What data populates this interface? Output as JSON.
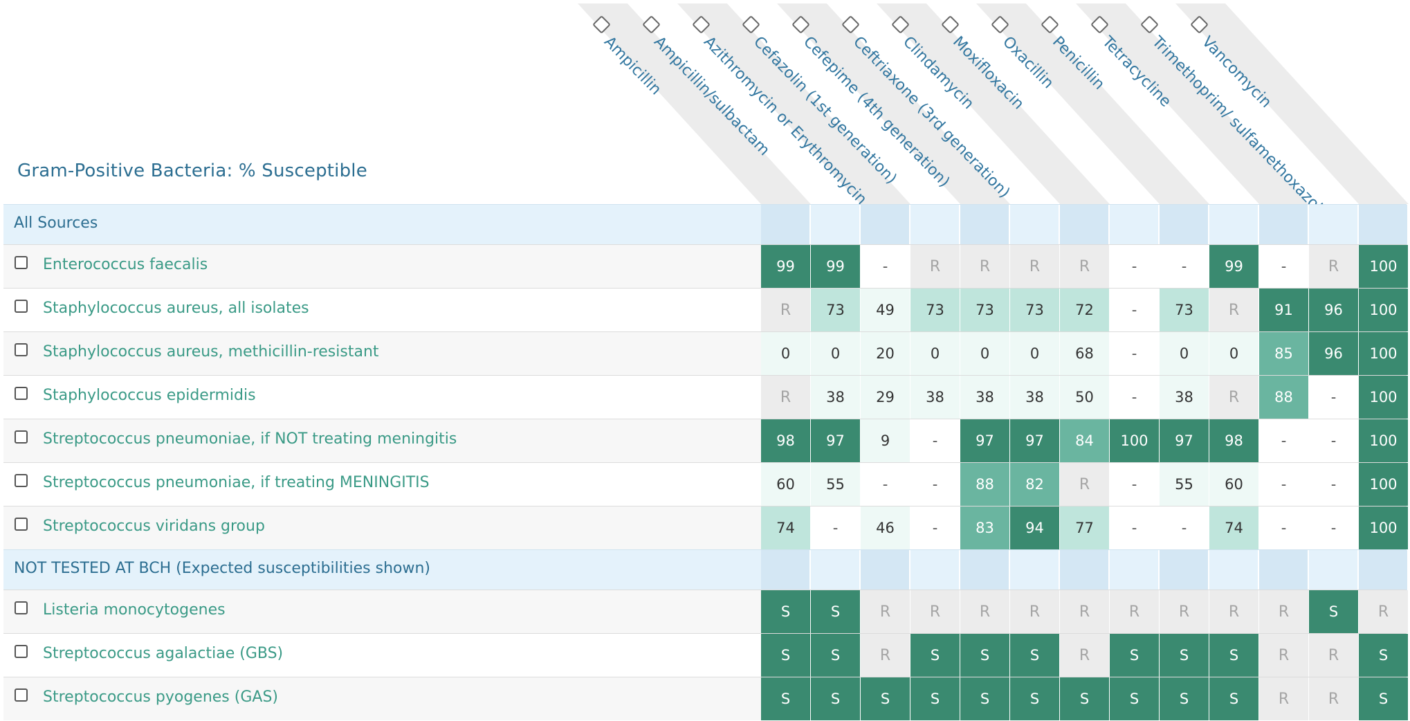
{
  "title": "Gram-Positive Bacteria: % Susceptible",
  "antibiotics": [
    "Ampicillin",
    "Ampicillin/sulbactam",
    "Azithromycin or Erythromycin",
    "Cefazolin (1st generation)",
    "Cefepime (4th generation)",
    "Ceftriaxone (3rd generation)",
    "Clindamycin",
    "Moxifloxacin",
    "Oxacillin",
    "Penicillin",
    "Tetracycline",
    "Trimethoprim/ sulfamethoxazole",
    "Vancomycin"
  ],
  "sections": [
    {
      "label": "All Sources",
      "rows": [
        {
          "name": "Enterococcus faecalis",
          "values": [
            "99",
            "99",
            "-",
            "R",
            "R",
            "R",
            "R",
            "-",
            "-",
            "99",
            "-",
            "R",
            "100"
          ]
        },
        {
          "name": "Staphylococcus aureus, all isolates",
          "values": [
            "R",
            "73",
            "49",
            "73",
            "73",
            "73",
            "72",
            "-",
            "73",
            "R",
            "91",
            "96",
            "100"
          ]
        },
        {
          "name": "Staphylococcus aureus, methicillin-resistant",
          "values": [
            "0",
            "0",
            "20",
            "0",
            "0",
            "0",
            "68",
            "-",
            "0",
            "0",
            "85",
            "96",
            "100"
          ]
        },
        {
          "name": "Staphylococcus epidermidis",
          "values": [
            "R",
            "38",
            "29",
            "38",
            "38",
            "38",
            "50",
            "-",
            "38",
            "R",
            "88",
            "-",
            "100"
          ]
        },
        {
          "name": "Streptococcus pneumoniae, if NOT treating meningitis",
          "values": [
            "98",
            "97",
            "9",
            "-",
            "97",
            "97",
            "84",
            "100",
            "97",
            "98",
            "-",
            "-",
            "100"
          ]
        },
        {
          "name": "Streptococcus pneumoniae, if treating MENINGITIS",
          "values": [
            "60",
            "55",
            "-",
            "-",
            "88",
            "82",
            "R",
            "-",
            "55",
            "60",
            "-",
            "-",
            "100"
          ]
        },
        {
          "name": "Streptococcus viridans group",
          "values": [
            "74",
            "-",
            "46",
            "-",
            "83",
            "94",
            "77",
            "-",
            "-",
            "74",
            "-",
            "-",
            "100"
          ]
        }
      ]
    },
    {
      "label": "NOT TESTED AT BCH (Expected susceptibilities shown)",
      "rows": [
        {
          "name": "Listeria monocytogenes",
          "values": [
            "S",
            "S",
            "R",
            "R",
            "R",
            "R",
            "R",
            "R",
            "R",
            "R",
            "R",
            "S",
            "R"
          ]
        },
        {
          "name": "Streptococcus agalactiae (GBS)",
          "values": [
            "S",
            "S",
            "R",
            "S",
            "S",
            "S",
            "R",
            "S",
            "S",
            "S",
            "R",
            "R",
            "S"
          ]
        },
        {
          "name": "Streptococcus pyogenes (GAS)",
          "values": [
            "S",
            "S",
            "S",
            "S",
            "S",
            "S",
            "S",
            "S",
            "S",
            "S",
            "R",
            "R",
            "S"
          ]
        }
      ]
    }
  ],
  "colors": {
    "high": "#3a8a70",
    "mid": "#6ab5a0",
    "low": "#bfe5dc",
    "faint": "#eef9f6",
    "resistant_bg": "#ececec",
    "resistant_text": "#a5a5a5",
    "header_band": "#ececec",
    "section_bg": "#e4f2fb",
    "section_cell": "#d4e7f4"
  }
}
